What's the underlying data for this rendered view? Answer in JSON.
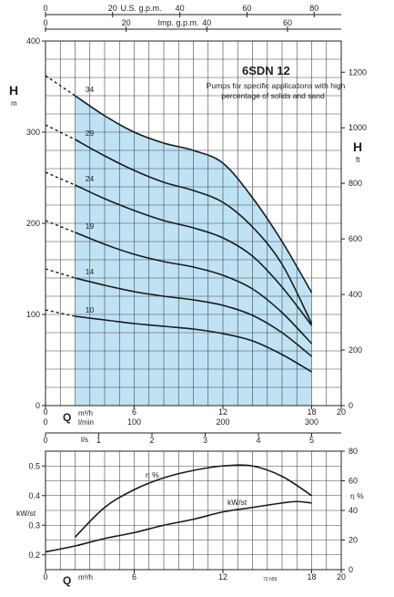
{
  "chart_data": [
    {
      "type": "line",
      "title": "6SDN 12",
      "subtitle": "Pumps for specific applications with high percentage of solids and sand",
      "left_axis": {
        "label": "H",
        "unit": "m",
        "ticks": [
          0,
          100,
          200,
          300,
          400
        ],
        "range": [
          0,
          400
        ]
      },
      "right_axis": {
        "label": "H",
        "unit": "ft",
        "ticks": [
          0,
          200,
          400,
          600,
          800,
          1000,
          1200
        ]
      },
      "bottom_axes": {
        "q_label": "Q",
        "m3h": {
          "unit": "m³/h",
          "ticks": [
            "0",
            "6",
            "12",
            "18",
            "20"
          ],
          "range": [
            0,
            20
          ]
        },
        "lmin": {
          "unit": "l/min",
          "ticks": [
            "0",
            "100",
            "200",
            "300"
          ]
        },
        "ls": {
          "unit": "l/s",
          "ticks": [
            "0",
            "1",
            "2",
            "3",
            "4",
            "5"
          ]
        }
      },
      "top_axes": {
        "usgpm": {
          "unit": "U.S. g.p.m.",
          "ticks": [
            "0",
            "20",
            "40",
            "60",
            "80"
          ]
        },
        "impgpm": {
          "unit": "Imp. g.p.m.",
          "ticks": [
            "0",
            "20",
            "40",
            "60"
          ]
        }
      },
      "operating_range": [
        2,
        18
      ],
      "grid": true,
      "series": [
        {
          "name": "34",
          "points": [
            [
              2,
              340
            ],
            [
              4,
              318
            ],
            [
              6,
              300
            ],
            [
              8,
              288
            ],
            [
              10,
              280
            ],
            [
              12,
              266
            ],
            [
              14,
              228
            ],
            [
              16,
              180
            ],
            [
              18,
              124
            ]
          ]
        },
        {
          "name": "29",
          "points": [
            [
              2,
              292
            ],
            [
              4,
              274
            ],
            [
              6,
              258
            ],
            [
              8,
              245
            ],
            [
              10,
              236
            ],
            [
              12,
              223
            ],
            [
              14,
              196
            ],
            [
              16,
              155
            ],
            [
              18,
              90
            ]
          ]
        },
        {
          "name": "24",
          "points": [
            [
              2,
              242
            ],
            [
              4,
              227
            ],
            [
              6,
              214
            ],
            [
              8,
              203
            ],
            [
              10,
              195
            ],
            [
              12,
              184
            ],
            [
              14,
              164
            ],
            [
              16,
              130
            ],
            [
              18,
              88
            ]
          ]
        },
        {
          "name": "19",
          "points": [
            [
              2,
              190
            ],
            [
              4,
              177
            ],
            [
              6,
              166
            ],
            [
              8,
              158
            ],
            [
              10,
              152
            ],
            [
              12,
              143
            ],
            [
              14,
              128
            ],
            [
              16,
              102
            ],
            [
              18,
              68
            ]
          ]
        },
        {
          "name": "14",
          "points": [
            [
              2,
              140
            ],
            [
              4,
              132
            ],
            [
              6,
              125
            ],
            [
              8,
              120
            ],
            [
              10,
              116
            ],
            [
              12,
              110
            ],
            [
              14,
              99
            ],
            [
              16,
              80
            ],
            [
              18,
              54
            ]
          ]
        },
        {
          "name": "10",
          "points": [
            [
              2,
              98
            ],
            [
              4,
              94
            ],
            [
              6,
              90
            ],
            [
              8,
              87
            ],
            [
              10,
              84
            ],
            [
              12,
              79
            ],
            [
              14,
              71
            ],
            [
              16,
              56
            ],
            [
              18,
              37
            ]
          ]
        }
      ],
      "extrapolation_start": [
        362,
        308,
        256,
        203,
        150,
        105
      ]
    },
    {
      "type": "line",
      "q_label": "Q",
      "x": {
        "unit": "m³/h",
        "ticks": [
          "0",
          "6",
          "12",
          "18",
          "20"
        ],
        "range": [
          0,
          20
        ]
      },
      "left_axis": {
        "label": "kW/st",
        "ticks": [
          "0.2",
          "0.3",
          "0.4",
          "0.5"
        ],
        "range": [
          0.15,
          0.55
        ]
      },
      "right_axis": {
        "label": "η %",
        "ticks": [
          "0",
          "20",
          "40",
          "60",
          "80"
        ],
        "range": [
          0,
          80
        ]
      },
      "grid": true,
      "series": [
        {
          "name": "η %",
          "axis": "right",
          "points": [
            [
              2,
              22
            ],
            [
              4,
              42
            ],
            [
              6,
              54
            ],
            [
              8,
              62
            ],
            [
              10,
              67
            ],
            [
              12,
              70
            ],
            [
              14,
              70
            ],
            [
              16,
              63
            ],
            [
              18,
              50
            ]
          ]
        },
        {
          "name": "kW/st",
          "axis": "left",
          "points": [
            [
              0,
              0.21
            ],
            [
              2,
              0.23
            ],
            [
              4,
              0.255
            ],
            [
              6,
              0.275
            ],
            [
              8,
              0.3
            ],
            [
              10,
              0.32
            ],
            [
              12,
              0.345
            ],
            [
              14,
              0.36
            ],
            [
              16,
              0.375
            ],
            [
              17,
              0.38
            ],
            [
              18,
              0.375
            ]
          ]
        }
      ],
      "credit": "72 h59"
    }
  ]
}
